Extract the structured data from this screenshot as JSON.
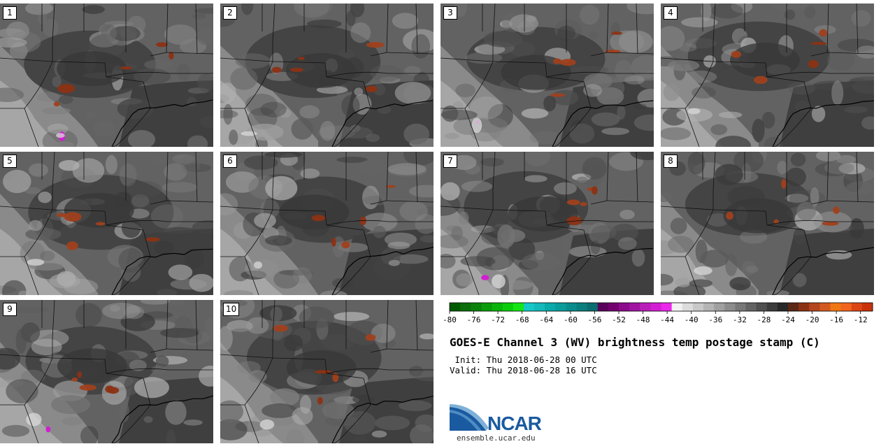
{
  "chart_data": {
    "type": "heatmap",
    "title": "GOES-E Channel 3 (WV) brightness temp postage stamp (C)",
    "init": " Init: Thu 2018-06-28 00 UTC",
    "valid": "Valid: Thu 2018-06-28 16 UTC",
    "panels": [
      {
        "label": "1",
        "member": 1
      },
      {
        "label": "2",
        "member": 2
      },
      {
        "label": "3",
        "member": 3
      },
      {
        "label": "4",
        "member": 4
      },
      {
        "label": "5",
        "member": 5
      },
      {
        "label": "6",
        "member": 6
      },
      {
        "label": "7",
        "member": 7
      },
      {
        "label": "8",
        "member": 8
      },
      {
        "label": "9",
        "member": 9
      },
      {
        "label": "10",
        "member": 10
      }
    ],
    "colorbar": {
      "min": -80,
      "max": -10,
      "interval": 2,
      "tick_labels": [
        "-80",
        "-76",
        "-72",
        "-68",
        "-64",
        "-60",
        "-56",
        "-52",
        "-48",
        "-44",
        "-40",
        "-36",
        "-32",
        "-28",
        "-24",
        "-20",
        "-16",
        "-12"
      ],
      "colors": [
        "#005a00",
        "#0a6e0a",
        "#0a820a",
        "#0a9c0a",
        "#0ab40a",
        "#0acd0a",
        "#14e614",
        "#14c8c8",
        "#14b9b9",
        "#0aaaaa",
        "#0a9b9b",
        "#0a8c8c",
        "#0a7d7d",
        "#0a6e6e",
        "#5a005a",
        "#73006e",
        "#8c0a8c",
        "#a014a0",
        "#b91eb9",
        "#d21ed2",
        "#eb28eb",
        "#f2f2f2",
        "#dcdcdc",
        "#c8c8c8",
        "#b4b4b4",
        "#a0a0a0",
        "#8c8c8c",
        "#787878",
        "#646464",
        "#505050",
        "#3c3c3c",
        "#282828",
        "#5a2814",
        "#8c3214",
        "#b4461e",
        "#d25a1e",
        "#f07814",
        "#f0641e",
        "#dc4614",
        "#c8320a"
      ]
    }
  },
  "branding": {
    "logo_text": "NCAR",
    "url": "ensemble.ucar.edu"
  }
}
